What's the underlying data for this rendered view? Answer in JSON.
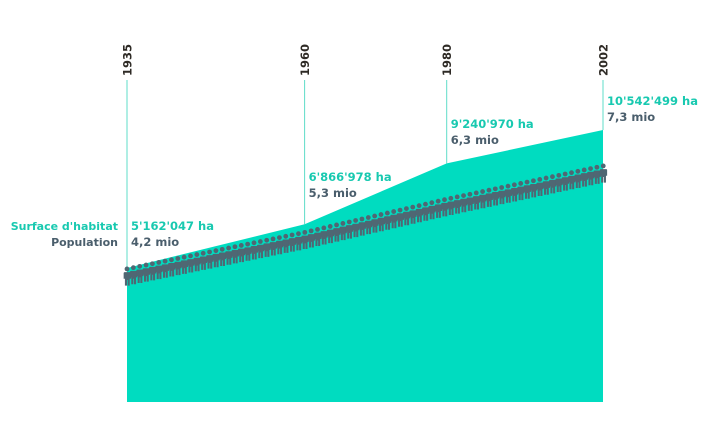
{
  "colors": {
    "area": "#00dcc0",
    "population": "#4f6773",
    "year_line": "#5fdcc8",
    "year_text": "#2e2a25",
    "area_text": "#18c9b0",
    "pop_text": "#4a5e6c"
  },
  "legend": {
    "area_label": "Surface d'habitat",
    "population_label": "Population"
  },
  "chart_data": {
    "type": "area",
    "x": [
      1935,
      1960,
      1980,
      2002
    ],
    "series": [
      {
        "name": "Surface d'habitat",
        "values": [
          5162047,
          6866978,
          9240970,
          10542499
        ]
      },
      {
        "name": "Population",
        "values": [
          4.2,
          5.3,
          6.3,
          7.3
        ]
      }
    ],
    "labels": [
      {
        "year": "1935",
        "area": "5'162'047 ha",
        "population": "4,2 mio"
      },
      {
        "year": "1960",
        "area": "6'866'978 ha",
        "population": "5,3 mio"
      },
      {
        "year": "1980",
        "area": "9'240'970 ha",
        "population": "6,3 mio"
      },
      {
        "year": "2002",
        "area": "10'542'499 ha",
        "population": "7,3 mio"
      }
    ]
  }
}
